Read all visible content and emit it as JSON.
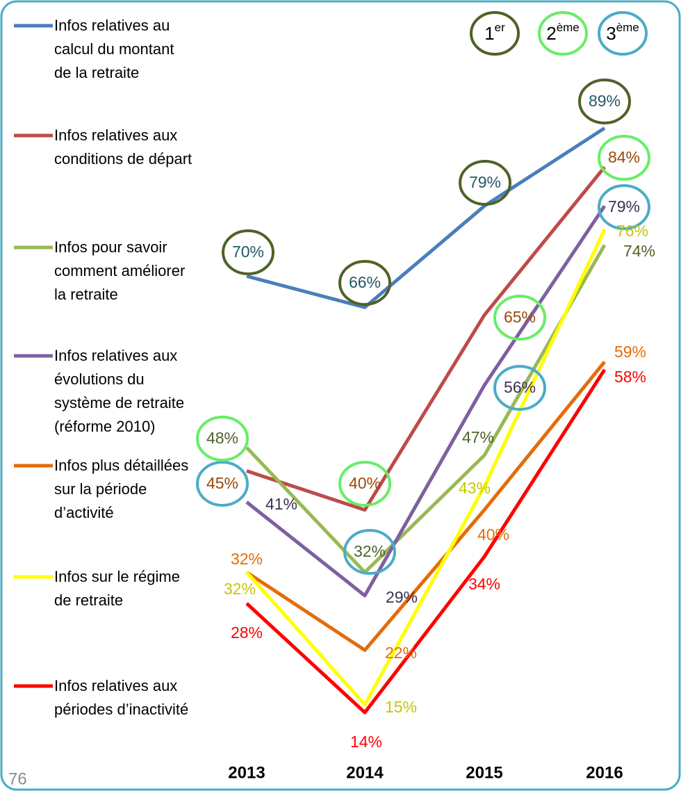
{
  "chart_data": {
    "type": "line",
    "page_number": "76",
    "categories": [
      "2013",
      "2014",
      "2015",
      "2016"
    ],
    "rank_legend": [
      {
        "num": "1",
        "sup": "er",
        "color": "#4f6228"
      },
      {
        "num": "2",
        "sup": "ème",
        "color": "#66ee66"
      },
      {
        "num": "3",
        "sup": "ème",
        "color": "#4bacc6"
      }
    ],
    "series": [
      {
        "name": "Infos relatives au calcul du montant de la retraite",
        "color": "#4a7ebb",
        "label_color": "#215968",
        "values": [
          70,
          66,
          79,
          89
        ],
        "value_labels": [
          "70%",
          "66%",
          "79%",
          "89%"
        ],
        "circles": [
          1,
          1,
          1,
          1
        ]
      },
      {
        "name": "Infos relatives aux conditions de départ",
        "color": "#be4b48",
        "label_color": "#984807",
        "values": [
          45,
          40,
          65,
          84
        ],
        "value_labels": [
          "45%",
          "40%",
          "65%",
          "84%"
        ],
        "circles": [
          3,
          2,
          2,
          2
        ]
      },
      {
        "name": "Infos pour savoir comment améliorer la retraite",
        "color": "#98b954",
        "label_color": "#4f6228",
        "values": [
          48,
          32,
          47,
          74
        ],
        "value_labels": [
          "48%",
          "32%",
          "47%",
          "74%"
        ],
        "circles": [
          2,
          3,
          null,
          null
        ]
      },
      {
        "name": "Infos relatives aux évolutions du système de retraite (réforme 2010)",
        "color": "#7d60a0",
        "label_color": "#3f3151",
        "values": [
          41,
          29,
          56,
          79
        ],
        "value_labels": [
          "41%",
          "29%",
          "56%",
          "79%"
        ],
        "circles": [
          null,
          null,
          3,
          3
        ]
      },
      {
        "name": "Infos plus détaillées sur la période d’activité",
        "color": "#e46c0a",
        "label_color": "#e46c0a",
        "values": [
          32,
          22,
          40,
          59
        ],
        "value_labels": [
          "32%",
          "22%",
          "40%",
          "59%"
        ],
        "circles": [
          null,
          null,
          null,
          null
        ]
      },
      {
        "name": "Infos sur le régime de retraite",
        "color": "#ffff00",
        "label_color": "#c6c600",
        "values": [
          32,
          15,
          43,
          76
        ],
        "value_labels": [
          "32%",
          "15%",
          "43%",
          "76%"
        ],
        "circles": [
          null,
          null,
          null,
          null
        ]
      },
      {
        "name": "Infos relatives aux périodes d’inactivité",
        "color": "#ff0000",
        "label_color": "#ff0000",
        "values": [
          28,
          14,
          34,
          58
        ],
        "value_labels": [
          "28%",
          "14%",
          "34%",
          "58%"
        ],
        "circles": [
          null,
          null,
          null,
          null
        ]
      }
    ]
  }
}
